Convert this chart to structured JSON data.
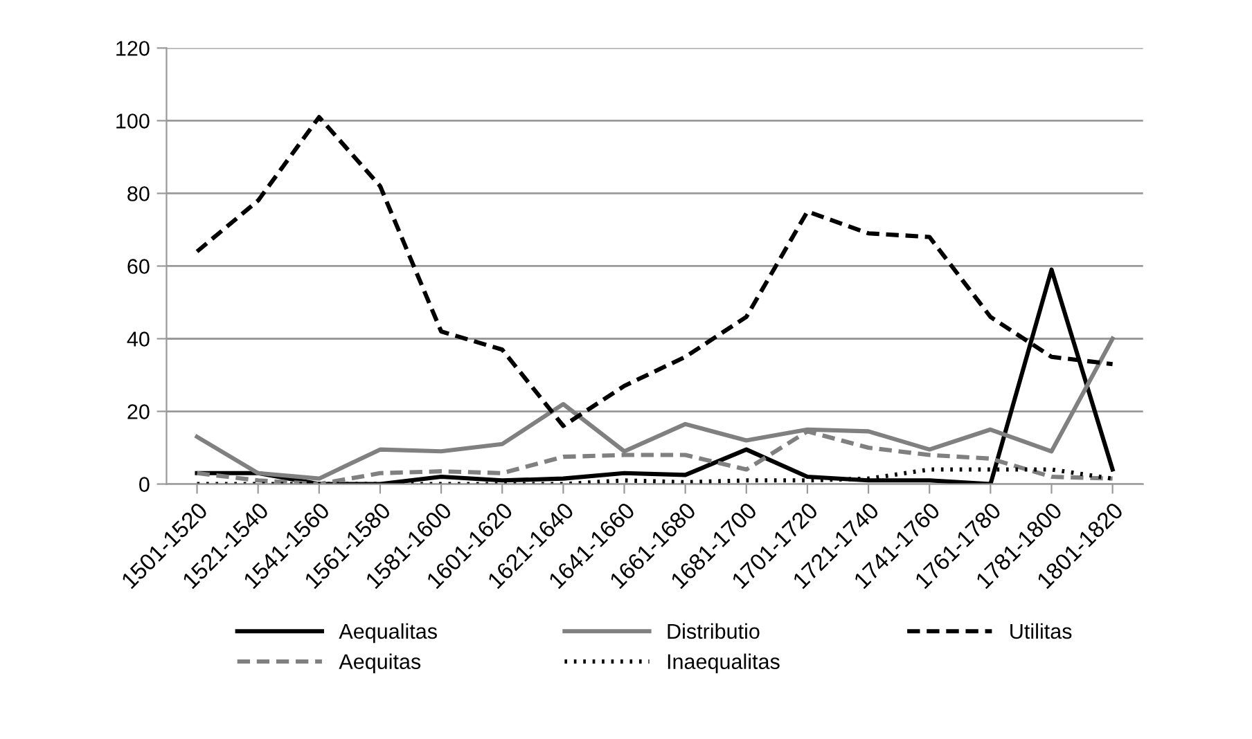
{
  "chart_data": {
    "type": "line",
    "categories": [
      "1501-1520",
      "1521-1540",
      "1541-1560",
      "1561-1580",
      "1581-1600",
      "1601-1620",
      "1621-1640",
      "1641-1660",
      "1661-1680",
      "1681-1700",
      "1701-1720",
      "1721-1740",
      "1741-1760",
      "1761-1780",
      "1781-1800",
      "1801-1820"
    ],
    "series": [
      {
        "name": "Aequalitas",
        "color": "#000000",
        "line_style": "solid",
        "values": [
          3,
          3,
          0,
          0,
          2,
          1,
          1.5,
          3,
          2.5,
          9.5,
          2,
          1,
          1,
          0,
          59,
          4
        ]
      },
      {
        "name": "Aequitas",
        "color": "#808080",
        "line_style": "dashed",
        "values": [
          3,
          1,
          0,
          3,
          3.5,
          3,
          7.5,
          8,
          8,
          4,
          14.5,
          10,
          8,
          7,
          2,
          1.5
        ]
      },
      {
        "name": "Distributio",
        "color": "#808080",
        "line_style": "solid",
        "values": [
          13,
          3,
          1.5,
          9.5,
          9,
          11,
          22,
          9,
          16.5,
          12,
          15,
          14.5,
          9.5,
          15,
          9,
          40
        ]
      },
      {
        "name": "Inaequalitas",
        "color": "#000000",
        "line_style": "dotted",
        "values": [
          0,
          0,
          0,
          0,
          0,
          0,
          0,
          1,
          0.5,
          1,
          1,
          1.5,
          4,
          4,
          4,
          1.5
        ]
      },
      {
        "name": "Utilitas",
        "color": "#000000",
        "line_style": "dashed",
        "values": [
          64,
          78,
          101,
          82,
          42,
          37,
          16,
          27,
          35,
          46,
          75,
          69,
          68,
          46,
          35,
          33
        ]
      }
    ],
    "ylim": [
      0,
      120
    ],
    "yticks": [
      0,
      20,
      40,
      60,
      80,
      100,
      120
    ],
    "grid": "y",
    "legend": "bottom",
    "marker": "none"
  }
}
